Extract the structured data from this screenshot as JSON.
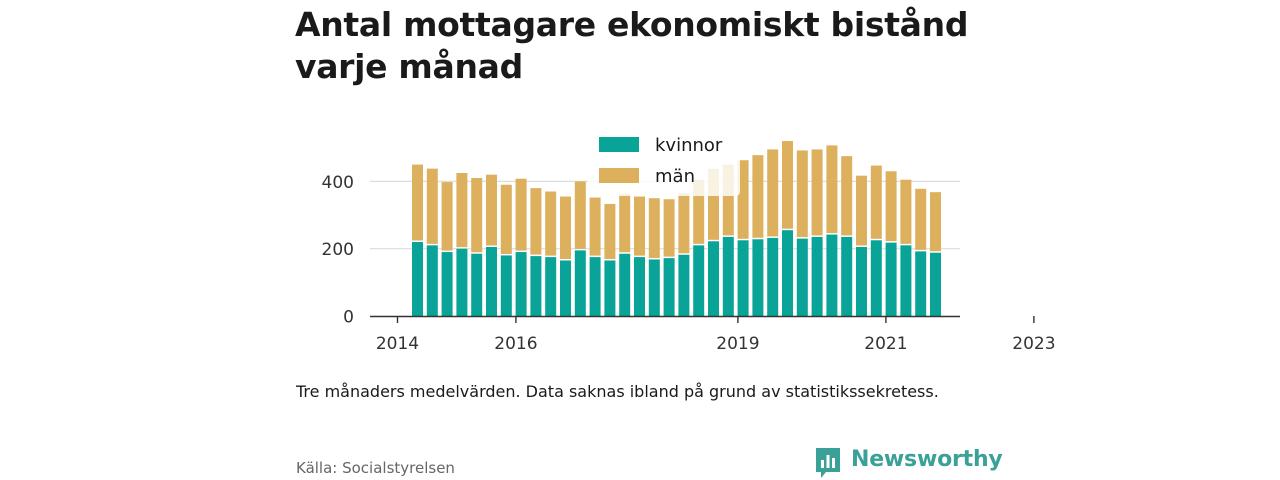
{
  "title": "Antal mottagare ekonomiskt bistånd varje månad",
  "note": "Tre månaders medelvärden. Data saknas ibland på grund av statistikssekretess.",
  "source": "Källa: Socialstyrelsen",
  "logo": {
    "text": "Newsworthy",
    "icon": "bar-chart-speech-bubble-icon"
  },
  "colors": {
    "kvinnor": "#0aa398",
    "man": "#dcb05d",
    "axis": "#333333",
    "grid": "#dddddd"
  },
  "chart_data": {
    "type": "bar",
    "stacked": true,
    "title": "Antal mottagare ekonomiskt bistånd varje månad",
    "ylim": [
      0,
      520
    ],
    "yticks": [
      0,
      200,
      400
    ],
    "grid": true,
    "legend_position": "top-center",
    "x_tick_labels": [
      "2014",
      "2016",
      "2019",
      "2021",
      "2023"
    ],
    "x_tick_positions": [
      0,
      8,
      23,
      33,
      43
    ],
    "series": [
      {
        "name": "kvinnor",
        "values": [
          220,
          210,
          190,
          200,
          185,
          205,
          180,
          190,
          178,
          175,
          165,
          195,
          175,
          165,
          185,
          175,
          168,
          172,
          182,
          210,
          222,
          235,
          225,
          228,
          232,
          255,
          230,
          235,
          242,
          235,
          205,
          225,
          218,
          210,
          192,
          188
        ]
      },
      {
        "name": "män",
        "values": [
          230,
          228,
          208,
          225,
          225,
          215,
          210,
          218,
          202,
          195,
          190,
          205,
          177,
          168,
          178,
          180,
          182,
          175,
          183,
          195,
          215,
          215,
          238,
          250,
          263,
          265,
          262,
          260,
          265,
          240,
          212,
          222,
          212,
          195,
          186,
          180
        ]
      }
    ]
  }
}
